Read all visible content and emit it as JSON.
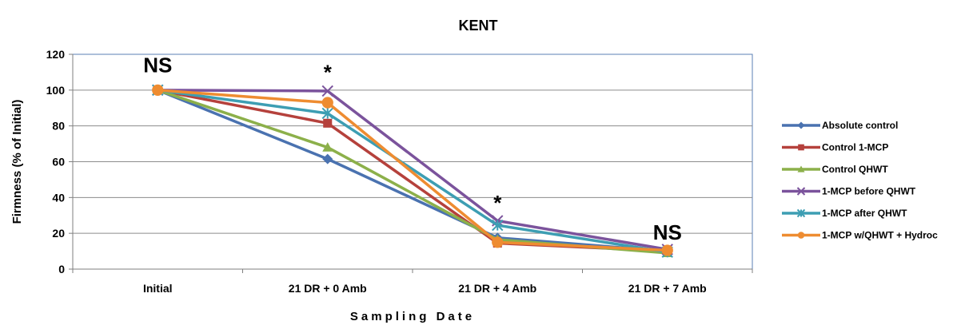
{
  "chart_data": {
    "type": "line",
    "title": "KENT",
    "xlabel": "Sampling Date",
    "ylabel": "Firmness (% of Initial)",
    "categories": [
      "Initial",
      "21 DR + 0 Amb",
      "21 DR + 4 Amb",
      "21 DR + 7 Amb"
    ],
    "ylim": [
      0,
      120
    ],
    "yticks": [
      0,
      20,
      40,
      60,
      80,
      100,
      120
    ],
    "ytick_labels": [
      "0",
      "20",
      "40",
      "60",
      "80",
      "100",
      "120"
    ],
    "grid": true,
    "legend_position": "right",
    "series": [
      {
        "name": "Absolute control",
        "values": [
          100,
          61.5,
          17.5,
          10
        ],
        "color": "#4a72b0",
        "marker": "diamond"
      },
      {
        "name": "Control 1-MCP",
        "values": [
          100,
          81.5,
          14.5,
          10
        ],
        "color": "#b5413c",
        "marker": "square"
      },
      {
        "name": "Control QHWT",
        "values": [
          100,
          68,
          16.5,
          9
        ],
        "color": "#8cb04a",
        "marker": "triangle"
      },
      {
        "name": "1-MCP before QHWT",
        "values": [
          100,
          99.5,
          27,
          11
        ],
        "color": "#7b539c",
        "marker": "x"
      },
      {
        "name": "1-MCP after QHWT",
        "values": [
          100,
          87,
          24.5,
          9.5
        ],
        "color": "#3d9eb3",
        "marker": "star"
      },
      {
        "name": "1-MCP w/QHWT + Hydroc",
        "values": [
          100,
          93,
          15,
          10.5
        ],
        "color": "#ee8c31",
        "marker": "circle"
      }
    ],
    "annotations": [
      {
        "text": "NS",
        "category": 0,
        "y": 110
      },
      {
        "text": "*",
        "category": 1,
        "y": 106
      },
      {
        "text": "*",
        "category": 2,
        "y": 33
      },
      {
        "text": "NS",
        "category": 3,
        "y": 16.5
      }
    ]
  }
}
